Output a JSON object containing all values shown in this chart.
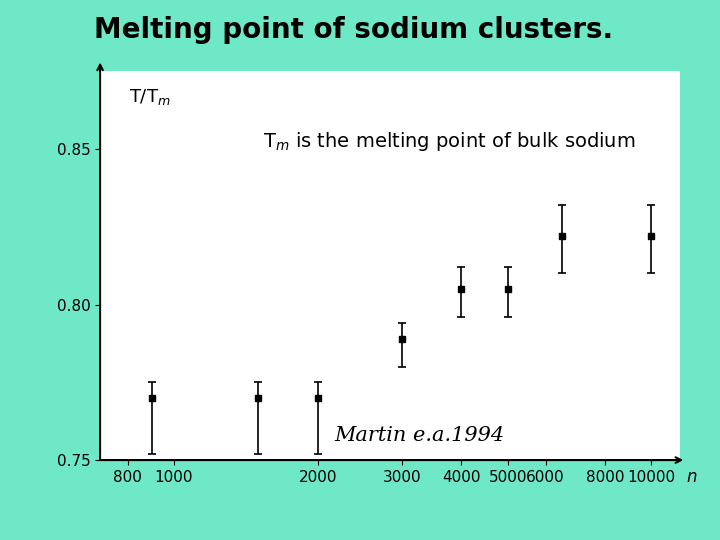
{
  "title": "Melting point of sodium clusters.",
  "background_color": "#6fe8c8",
  "plot_bg_color": "#ffffff",
  "ylabel": "T/T$_m$",
  "xlabel": "n",
  "annotation": "T$_m$ is the melting point of bulk sodium",
  "citation": "Martin e.a.1994",
  "xlim": [
    700,
    11500
  ],
  "ylim": [
    0.75,
    0.875
  ],
  "yticks": [
    0.75,
    0.8,
    0.85
  ],
  "xtick_labels": [
    "800",
    "1000",
    "2000",
    "3000",
    "4000",
    "5000",
    "6000",
    "8000",
    "10000"
  ],
  "xtick_positions": [
    800,
    1000,
    2000,
    3000,
    4000,
    5000,
    6000,
    8000,
    10000
  ],
  "x": [
    900,
    1500,
    2000,
    3000,
    4000,
    5000,
    6500,
    10000
  ],
  "y": [
    0.77,
    0.77,
    0.77,
    0.789,
    0.805,
    0.805,
    0.822,
    0.822
  ],
  "yerr_low": [
    0.018,
    0.018,
    0.018,
    0.009,
    0.009,
    0.009,
    0.012,
    0.012
  ],
  "yerr_high": [
    0.005,
    0.005,
    0.005,
    0.005,
    0.007,
    0.007,
    0.01,
    0.01
  ],
  "marker_size": 5,
  "title_fontsize": 20,
  "axis_label_fontsize": 12,
  "tick_fontsize": 11,
  "annotation_fontsize": 14,
  "citation_fontsize": 15
}
